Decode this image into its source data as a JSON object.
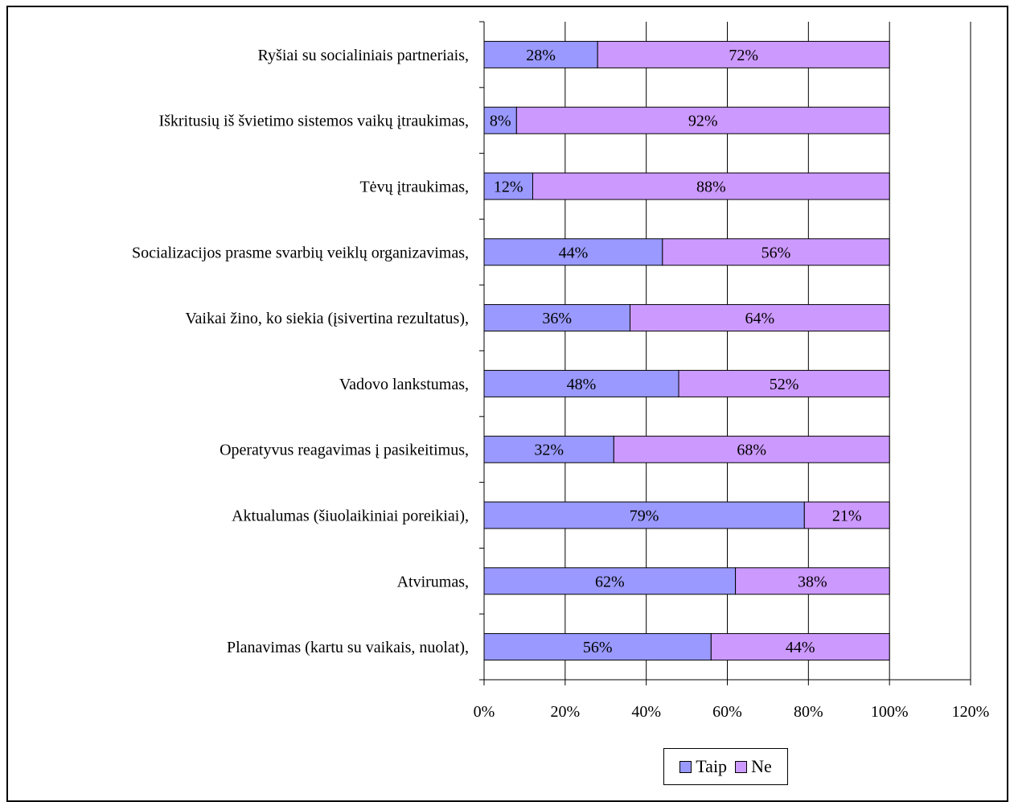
{
  "chart_data": {
    "type": "bar",
    "orientation": "horizontal",
    "stacked": true,
    "categories": [
      "Ryšiai su socialiniais partneriais,",
      "Iškritusių iš švietimo sistemos  vaikų įtraukimas,",
      "Tėvų įtraukimas,",
      "Socializacijos prasme svarbių veiklų organizavimas,",
      "Vaikai žino, ko siekia  (įsivertina rezultatus),",
      "Vadovo lankstumas,",
      "Operatyvus reagavimas į pasikeitimus,",
      "Aktualumas (šiuolaikiniai poreikiai),",
      "Atvirumas,",
      "Planavimas (kartu su vaikais, nuolat),"
    ],
    "series": [
      {
        "name": "Taip",
        "color": "#9999ff",
        "values": [
          28,
          8,
          12,
          44,
          36,
          48,
          32,
          79,
          62,
          56
        ],
        "labels": [
          "28%",
          "8%",
          "12%",
          "44%",
          "36%",
          "48%",
          "32%",
          "79%",
          "62%",
          "56%"
        ]
      },
      {
        "name": "Ne",
        "color": "#cc99ff",
        "values": [
          72,
          92,
          88,
          56,
          64,
          52,
          68,
          21,
          38,
          44
        ],
        "labels": [
          "72%",
          "92%",
          "88%",
          "56%",
          "64%",
          "52%",
          "68%",
          "21%",
          "38%",
          "44%"
        ]
      }
    ],
    "xlim": [
      0,
      120
    ],
    "xticks": [
      0,
      20,
      40,
      60,
      80,
      100,
      120
    ],
    "xtick_labels": [
      "0%",
      "20%",
      "40%",
      "60%",
      "80%",
      "100%",
      "120%"
    ],
    "grid": "vertical",
    "legend_position": "bottom",
    "title": "",
    "xlabel": "",
    "ylabel": ""
  }
}
